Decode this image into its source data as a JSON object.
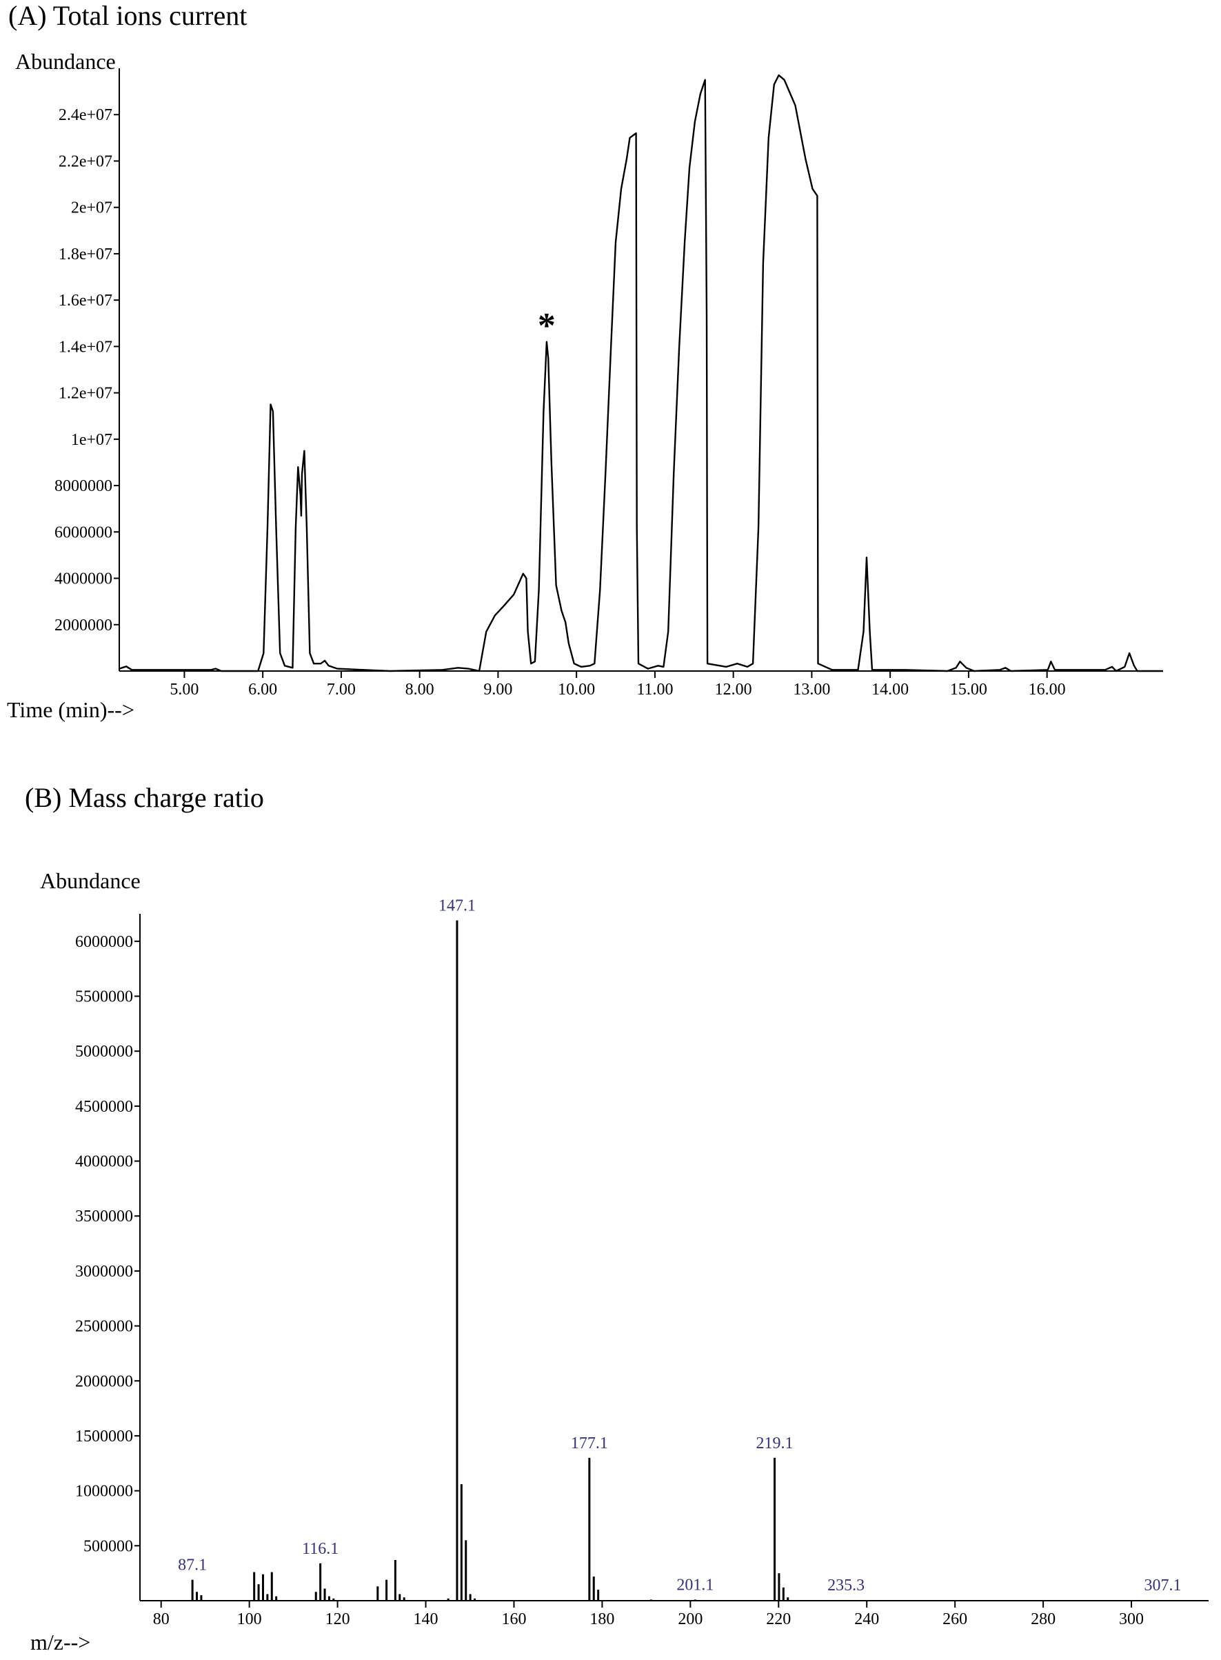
{
  "chart_data": [
    {
      "type": "line",
      "title": "(A) Total ions current",
      "ylabel": "Abundance",
      "xlabel": "Time (min)-->",
      "color": "#000000",
      "x": [
        4.17,
        4.26,
        4.33,
        5.34,
        5.4,
        5.47,
        5.94,
        6.01,
        6.06,
        6.1,
        6.13,
        6.17,
        6.22,
        6.28,
        6.38,
        6.42,
        6.45,
        6.48,
        6.49,
        6.5,
        6.53,
        6.56,
        6.6,
        6.65,
        6.74,
        6.79,
        6.84,
        6.95,
        7.62,
        8.29,
        8.49,
        8.62,
        8.76,
        8.8,
        8.85,
        8.96,
        9.07,
        9.2,
        9.32,
        9.36,
        9.38,
        9.42,
        9.47,
        9.52,
        9.58,
        9.62,
        9.64,
        9.68,
        9.74,
        9.81,
        9.86,
        9.9,
        9.97,
        10.06,
        10.17,
        10.23,
        10.3,
        10.37,
        10.44,
        10.5,
        10.57,
        10.64,
        10.68,
        10.76,
        10.77,
        10.79,
        10.91,
        11.04,
        11.11,
        11.17,
        11.24,
        11.31,
        11.38,
        11.44,
        11.51,
        11.58,
        11.64,
        11.66,
        11.67,
        11.91,
        12.05,
        12.18,
        12.25,
        12.32,
        12.38,
        12.45,
        12.52,
        12.58,
        12.65,
        12.79,
        12.92,
        13.01,
        13.07,
        13.08,
        13.26,
        13.59,
        13.66,
        13.7,
        13.74,
        13.77,
        14.19,
        14.73,
        14.84,
        14.89,
        14.97,
        15.07,
        15.4,
        15.47,
        15.54,
        16.01,
        16.05,
        16.1,
        16.74,
        16.83,
        16.88,
        16.99,
        17.05,
        17.11,
        17.15,
        17.48
      ],
      "values": [
        100000,
        200000,
        50000,
        50000,
        100000,
        0,
        0,
        770000,
        6200000,
        11500000,
        11200000,
        6200000,
        770000,
        230000,
        140000,
        6200000,
        8800000,
        7600000,
        6700000,
        8500000,
        9500000,
        6200000,
        770000,
        320000,
        320000,
        450000,
        230000,
        100000,
        0,
        50000,
        140000,
        100000,
        0,
        770000,
        1700000,
        2400000,
        2800000,
        3300000,
        4200000,
        4000000,
        1700000,
        320000,
        410000,
        3500000,
        11200000,
        14200000,
        13500000,
        9000000,
        3700000,
        2600000,
        2100000,
        1200000,
        320000,
        180000,
        230000,
        320000,
        3500000,
        8500000,
        14000000,
        18500000,
        20800000,
        22100000,
        23000000,
        23200000,
        6200000,
        320000,
        100000,
        230000,
        180000,
        1700000,
        8500000,
        14000000,
        18500000,
        21700000,
        23700000,
        24900000,
        25500000,
        15300000,
        320000,
        180000,
        320000,
        180000,
        320000,
        6200000,
        17600000,
        23000000,
        25300000,
        25700000,
        25500000,
        24400000,
        22100000,
        20800000,
        20500000,
        320000,
        50000,
        50000,
        1700000,
        4900000,
        1700000,
        50000,
        50000,
        0,
        140000,
        410000,
        140000,
        0,
        50000,
        140000,
        0,
        50000,
        410000,
        50000,
        50000,
        180000,
        0,
        180000,
        770000,
        230000,
        0,
        0
      ],
      "xlim": [
        4.17,
        17.48
      ],
      "xticks": [
        {
          "value": 5,
          "label": "5.00"
        },
        {
          "value": 6,
          "label": "6.00"
        },
        {
          "value": 7,
          "label": "7.00"
        },
        {
          "value": 8,
          "label": "8.00"
        },
        {
          "value": 9,
          "label": "9.00"
        },
        {
          "value": 10,
          "label": "10.00"
        },
        {
          "value": 11,
          "label": "11.00"
        },
        {
          "value": 12,
          "label": "12.00"
        },
        {
          "value": 13,
          "label": "13.00"
        },
        {
          "value": 14,
          "label": "14.00"
        },
        {
          "value": 15,
          "label": "15.00"
        },
        {
          "value": 16,
          "label": "16.00"
        }
      ],
      "ylim": [
        0,
        26000000
      ],
      "yticks": [
        2000000,
        4000000,
        6000000,
        8000000,
        {
          "value": 10000000,
          "label": "1e+07"
        },
        {
          "value": 12000000,
          "label": "1.2e+07"
        },
        {
          "value": 14000000,
          "label": "1.4e+07"
        },
        {
          "value": 16000000,
          "label": "1.6e+07"
        },
        {
          "value": 18000000,
          "label": "1.8e+07"
        },
        {
          "value": 20000000,
          "label": "2e+07"
        },
        {
          "value": 22000000,
          "label": "2.2e+07"
        },
        {
          "value": 24000000,
          "label": "2.4e+07"
        }
      ],
      "annotations": [
        {
          "text": "*",
          "x": 9.62,
          "y": 15000000
        }
      ]
    },
    {
      "type": "bar",
      "title": "(B) Mass charge ratio",
      "ylabel": "Abundance",
      "xlabel": "m/z-->",
      "color": "#000000",
      "x": [
        87.1,
        88.1,
        89.1,
        101.1,
        102.1,
        103.1,
        104.1,
        105.1,
        106.1,
        115.1,
        116.1,
        117.1,
        118.1,
        119.1,
        129.1,
        131.1,
        133.1,
        134.1,
        135.1,
        145.1,
        147.1,
        148.1,
        149.1,
        150.1,
        151.1,
        177.1,
        178.1,
        179.1,
        191.1,
        201.1,
        219.1,
        220.1,
        221.1,
        222.1,
        235.3,
        307.1
      ],
      "values": [
        190000,
        80000,
        50000,
        260000,
        150000,
        240000,
        60000,
        260000,
        40000,
        80000,
        340000,
        110000,
        40000,
        20000,
        130000,
        190000,
        370000,
        60000,
        30000,
        20000,
        6190000,
        1060000,
        550000,
        60000,
        20000,
        1300000,
        220000,
        100000,
        10000,
        10000,
        1300000,
        250000,
        120000,
        30000,
        5000,
        5000
      ],
      "peak_labels": [
        87.1,
        116.1,
        147.1,
        177.1,
        201.1,
        219.1,
        235.3,
        307.1
      ],
      "xlim": [
        75.2,
        317.5
      ],
      "xticks": [
        80,
        100,
        120,
        140,
        160,
        180,
        200,
        220,
        240,
        260,
        280,
        300
      ],
      "ylim": [
        0,
        6250000
      ],
      "yticks": [
        500000,
        1000000,
        1500000,
        2000000,
        2500000,
        3000000,
        3500000,
        4000000,
        4500000,
        5000000,
        5500000,
        6000000
      ]
    }
  ]
}
